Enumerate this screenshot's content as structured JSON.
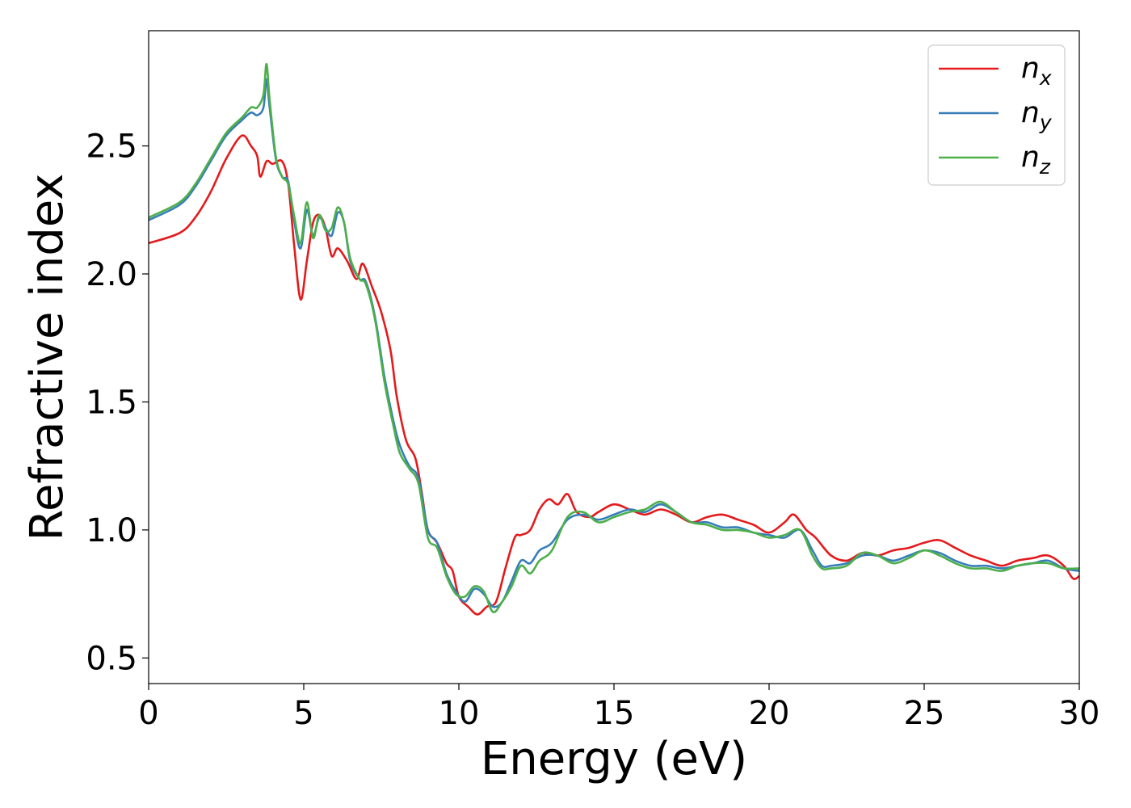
{
  "chart_data": {
    "type": "line",
    "title": "",
    "xlabel": "Energy (eV)",
    "ylabel": "Refractive index",
    "xlim": [
      0,
      30
    ],
    "ylim": [
      0.4,
      2.95
    ],
    "xticks": [
      0,
      5,
      10,
      15,
      20,
      25,
      30
    ],
    "xtick_labels": [
      "0",
      "5",
      "10",
      "15",
      "20",
      "25",
      "30"
    ],
    "yticks": [
      0.5,
      1.0,
      1.5,
      2.0,
      2.5
    ],
    "ytick_labels": [
      "0.5",
      "1.0",
      "1.5",
      "2.0",
      "2.5"
    ],
    "grid": false,
    "legend_position": "top-right",
    "series": [
      {
        "name": "n_x",
        "legend_base": "n",
        "legend_sub": "x",
        "color": "#e41a1c",
        "x": [
          0,
          1,
          1.5,
          2,
          2.5,
          3,
          3.3,
          3.5,
          3.6,
          3.8,
          4,
          4.3,
          4.5,
          4.7,
          4.9,
          5.1,
          5.3,
          5.5,
          5.7,
          5.9,
          6.1,
          6.4,
          6.7,
          6.9,
          7.2,
          7.5,
          7.8,
          8,
          8.3,
          8.6,
          8.8,
          9,
          9.3,
          9.6,
          9.8,
          10,
          10.3,
          10.6,
          10.9,
          11.2,
          11.5,
          11.8,
          12,
          12.3,
          12.6,
          12.9,
          13.2,
          13.5,
          13.8,
          14.2,
          14.5,
          15,
          15.5,
          16,
          16.5,
          17,
          17.5,
          18,
          18.5,
          19,
          19.5,
          20,
          20.5,
          20.8,
          21.2,
          21.5,
          22,
          22.5,
          23,
          23.5,
          24,
          24.5,
          25,
          25.5,
          26,
          26.5,
          27,
          27.5,
          28,
          28.5,
          29,
          29.5,
          29.8,
          30
        ],
        "y": [
          2.12,
          2.16,
          2.22,
          2.32,
          2.45,
          2.54,
          2.5,
          2.46,
          2.38,
          2.44,
          2.43,
          2.44,
          2.35,
          2.1,
          1.9,
          2.05,
          2.2,
          2.23,
          2.18,
          2.07,
          2.1,
          2.05,
          1.98,
          2.04,
          1.95,
          1.85,
          1.7,
          1.52,
          1.35,
          1.28,
          1.15,
          1.0,
          0.95,
          0.87,
          0.84,
          0.74,
          0.7,
          0.67,
          0.7,
          0.72,
          0.85,
          0.97,
          0.98,
          1.0,
          1.08,
          1.12,
          1.1,
          1.14,
          1.07,
          1.05,
          1.07,
          1.1,
          1.08,
          1.06,
          1.08,
          1.06,
          1.03,
          1.05,
          1.06,
          1.04,
          1.02,
          0.99,
          1.03,
          1.06,
          1.0,
          0.97,
          0.9,
          0.88,
          0.91,
          0.9,
          0.92,
          0.93,
          0.95,
          0.96,
          0.93,
          0.9,
          0.88,
          0.86,
          0.88,
          0.89,
          0.9,
          0.86,
          0.81,
          0.82
        ]
      },
      {
        "name": "n_y",
        "legend_base": "n",
        "legend_sub": "y",
        "color": "#377eb8",
        "x": [
          0,
          1,
          1.5,
          2,
          2.5,
          3,
          3.3,
          3.5,
          3.7,
          3.8,
          3.9,
          4.1,
          4.3,
          4.5,
          4.7,
          4.9,
          5.1,
          5.3,
          5.5,
          5.7,
          5.9,
          6.1,
          6.3,
          6.5,
          6.8,
          7,
          7.3,
          7.6,
          7.9,
          8.1,
          8.4,
          8.7,
          9,
          9.3,
          9.6,
          9.9,
          10.2,
          10.5,
          10.8,
          11.1,
          11.4,
          11.7,
          12,
          12.3,
          12.6,
          13,
          13.5,
          14,
          14.5,
          15,
          15.5,
          16,
          16.5,
          17,
          17.5,
          18,
          18.5,
          19,
          19.5,
          20,
          20.5,
          21,
          21.4,
          21.7,
          22,
          22.5,
          23,
          23.5,
          24,
          24.5,
          25,
          25.5,
          26,
          26.5,
          27,
          27.5,
          28,
          28.5,
          29,
          29.5,
          30
        ],
        "y": [
          2.21,
          2.27,
          2.34,
          2.44,
          2.54,
          2.6,
          2.63,
          2.62,
          2.65,
          2.76,
          2.65,
          2.45,
          2.38,
          2.36,
          2.2,
          2.1,
          2.25,
          2.15,
          2.22,
          2.18,
          2.15,
          2.24,
          2.2,
          2.05,
          1.98,
          1.97,
          1.83,
          1.6,
          1.42,
          1.33,
          1.25,
          1.2,
          1.0,
          0.95,
          0.83,
          0.76,
          0.72,
          0.77,
          0.75,
          0.7,
          0.72,
          0.8,
          0.88,
          0.87,
          0.92,
          0.95,
          1.04,
          1.06,
          1.04,
          1.06,
          1.08,
          1.07,
          1.1,
          1.07,
          1.03,
          1.03,
          1.01,
          1.01,
          0.99,
          0.98,
          0.97,
          1.0,
          0.92,
          0.86,
          0.86,
          0.87,
          0.9,
          0.9,
          0.88,
          0.9,
          0.92,
          0.91,
          0.88,
          0.86,
          0.86,
          0.85,
          0.86,
          0.87,
          0.88,
          0.85,
          0.84
        ]
      },
      {
        "name": "n_z",
        "legend_base": "n",
        "legend_sub": "z",
        "color": "#4daf4a",
        "x": [
          0,
          1,
          1.5,
          2,
          2.5,
          3,
          3.3,
          3.5,
          3.7,
          3.8,
          3.9,
          4.1,
          4.3,
          4.5,
          4.7,
          4.9,
          5.1,
          5.3,
          5.5,
          5.7,
          5.9,
          6.1,
          6.3,
          6.5,
          6.8,
          7,
          7.3,
          7.6,
          7.9,
          8.1,
          8.4,
          8.7,
          9,
          9.3,
          9.6,
          9.9,
          10.2,
          10.5,
          10.8,
          11.1,
          11.4,
          11.7,
          12,
          12.3,
          12.6,
          13,
          13.5,
          14,
          14.5,
          15,
          15.5,
          16,
          16.5,
          17,
          17.5,
          18,
          18.5,
          19,
          19.5,
          20,
          20.5,
          21,
          21.4,
          21.7,
          22,
          22.5,
          23,
          23.5,
          24,
          24.5,
          25,
          25.5,
          26,
          26.5,
          27,
          27.5,
          28,
          28.5,
          29,
          29.5,
          30
        ],
        "y": [
          2.22,
          2.28,
          2.35,
          2.45,
          2.55,
          2.61,
          2.65,
          2.65,
          2.7,
          2.82,
          2.68,
          2.46,
          2.38,
          2.35,
          2.22,
          2.12,
          2.28,
          2.14,
          2.23,
          2.17,
          2.18,
          2.26,
          2.2,
          2.06,
          1.98,
          1.96,
          1.82,
          1.58,
          1.4,
          1.3,
          1.24,
          1.18,
          0.97,
          0.93,
          0.82,
          0.75,
          0.74,
          0.78,
          0.76,
          0.68,
          0.72,
          0.78,
          0.86,
          0.83,
          0.88,
          0.92,
          1.05,
          1.07,
          1.03,
          1.05,
          1.07,
          1.08,
          1.11,
          1.07,
          1.03,
          1.02,
          1.0,
          1.0,
          0.99,
          0.97,
          0.98,
          1.0,
          0.9,
          0.85,
          0.85,
          0.86,
          0.91,
          0.9,
          0.87,
          0.89,
          0.92,
          0.9,
          0.87,
          0.85,
          0.85,
          0.84,
          0.86,
          0.87,
          0.87,
          0.85,
          0.85
        ]
      }
    ]
  }
}
